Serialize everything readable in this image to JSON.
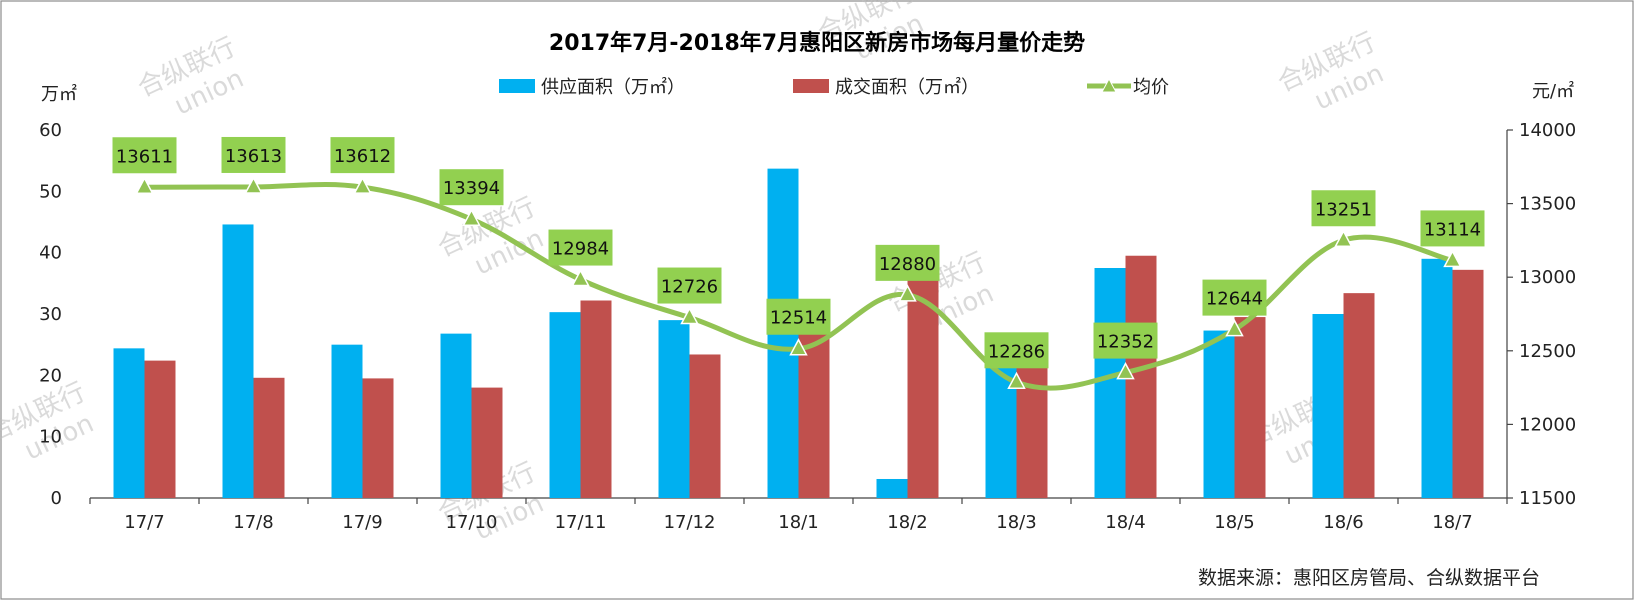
{
  "page": {
    "source_note": "数据来源：惠阳区房管局、合纵数据平台",
    "watermark": [
      "合纵联行",
      "union"
    ]
  },
  "colors": {
    "supply": "#00b0f0",
    "deal": "#c0504d",
    "price_line": "#92c353",
    "callout_bg": "#92d050",
    "frame": "#8c8c8c"
  },
  "chart_data": {
    "type": "bar",
    "title": "2017年7月-2018年7月惠阳区新房市场每月量价走势",
    "y_left_unit": "万㎡",
    "y_right_unit": "元/㎡",
    "categories": [
      "17/7",
      "17/8",
      "17/9",
      "17/10",
      "17/11",
      "17/12",
      "18/1",
      "18/2",
      "18/3",
      "18/4",
      "18/5",
      "18/6",
      "18/7"
    ],
    "ylim_left": [
      0,
      60
    ],
    "yticks_left": [
      0,
      10,
      20,
      30,
      40,
      50,
      60
    ],
    "ylim_right": [
      11500,
      14000
    ],
    "yticks_right": [
      11500,
      12000,
      12500,
      13000,
      13500,
      14000
    ],
    "legend_position": "top-center",
    "grid": false,
    "series": [
      {
        "name": "供应面积（万㎡）",
        "type": "bar",
        "axis": "left",
        "values": [
          24.4,
          44.6,
          25.0,
          26.8,
          30.3,
          29.0,
          53.7,
          3.1,
          21.9,
          37.5,
          27.3,
          30.0,
          39.0
        ]
      },
      {
        "name": "成交面积（万㎡）",
        "type": "bar",
        "axis": "left",
        "values": [
          22.4,
          19.6,
          19.5,
          18.0,
          32.2,
          23.4,
          26.8,
          35.7,
          21.6,
          39.5,
          29.5,
          33.4,
          37.2
        ]
      },
      {
        "name": "均价",
        "type": "line",
        "axis": "right",
        "values": [
          13611,
          13613,
          13612,
          13394,
          12984,
          12726,
          12514,
          12880,
          12286,
          12352,
          12644,
          13251,
          13114
        ],
        "labels": [
          "13611",
          "13613",
          "13612",
          "13394",
          "12984",
          "12726",
          "12514",
          "12880",
          "12286",
          "12352",
          "12644",
          "13251",
          "13114"
        ]
      }
    ]
  }
}
